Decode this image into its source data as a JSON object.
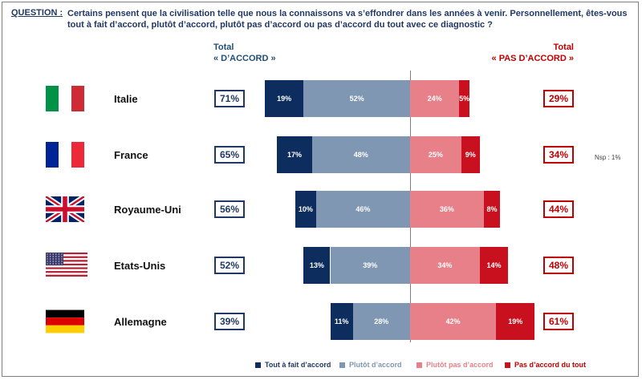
{
  "question": {
    "label": "QUESTION :",
    "text": "Certains pensent que la civilisation telle que nous la connaissons va s’effondrer dans les années à venir. Personnellement, êtes-vous tout à fait d’accord, plutôt d’accord, plutôt pas d’accord ou pas d’accord du tout avec ce diagnostic ?"
  },
  "headers": {
    "agree_line1": "Total",
    "agree_line2": "« D’ACCORD »",
    "disagree_line1": "Total",
    "disagree_line2": "« PAS D’ACCORD »"
  },
  "note": "Nsp : 1%",
  "colors": {
    "tout_a_fait": "#0d2d5e",
    "plutot": "#7f97b2",
    "plutot_pas": "#e8808a",
    "pas_du_tout": "#c8101e",
    "agree_total": "#1f3864",
    "disagree_total": "#c00000"
  },
  "legend": {
    "items": [
      {
        "label": "Tout à fait d’accord",
        "color": "#0d2d5e",
        "text_color": "#1f3864"
      },
      {
        "label": "Plutôt d’accord",
        "color": "#7f97b2",
        "text_color": "#7f97b2"
      },
      {
        "label": "Plutôt pas d’accord",
        "color": "#e8808a",
        "text_color": "#e8808a"
      },
      {
        "label": "Pas d’accord du tout",
        "color": "#c8101e",
        "text_color": "#c00000"
      }
    ]
  },
  "chart_data": {
    "type": "bar",
    "orientation": "horizontal-diverging",
    "categories": [
      "Italie",
      "France",
      "Royaume-Uni",
      "Etats-Unis",
      "Allemagne"
    ],
    "flags": [
      "italy-flag",
      "france-flag",
      "uk-flag",
      "usa-flag",
      "germany-flag"
    ],
    "series": [
      {
        "name": "Tout à fait d’accord",
        "values": [
          19,
          17,
          10,
          13,
          11
        ]
      },
      {
        "name": "Plutôt d’accord",
        "values": [
          52,
          48,
          46,
          39,
          28
        ]
      },
      {
        "name": "Plutôt pas d’accord",
        "values": [
          24,
          25,
          36,
          34,
          42
        ]
      },
      {
        "name": "Pas d’accord du tout",
        "values": [
          5,
          9,
          8,
          14,
          19
        ]
      }
    ],
    "total_agree": [
      "71%",
      "65%",
      "56%",
      "52%",
      "39%"
    ],
    "total_disagree": [
      "29%",
      "34%",
      "44%",
      "48%",
      "61%"
    ],
    "value_suffix": "%",
    "legend_position": "bottom"
  }
}
